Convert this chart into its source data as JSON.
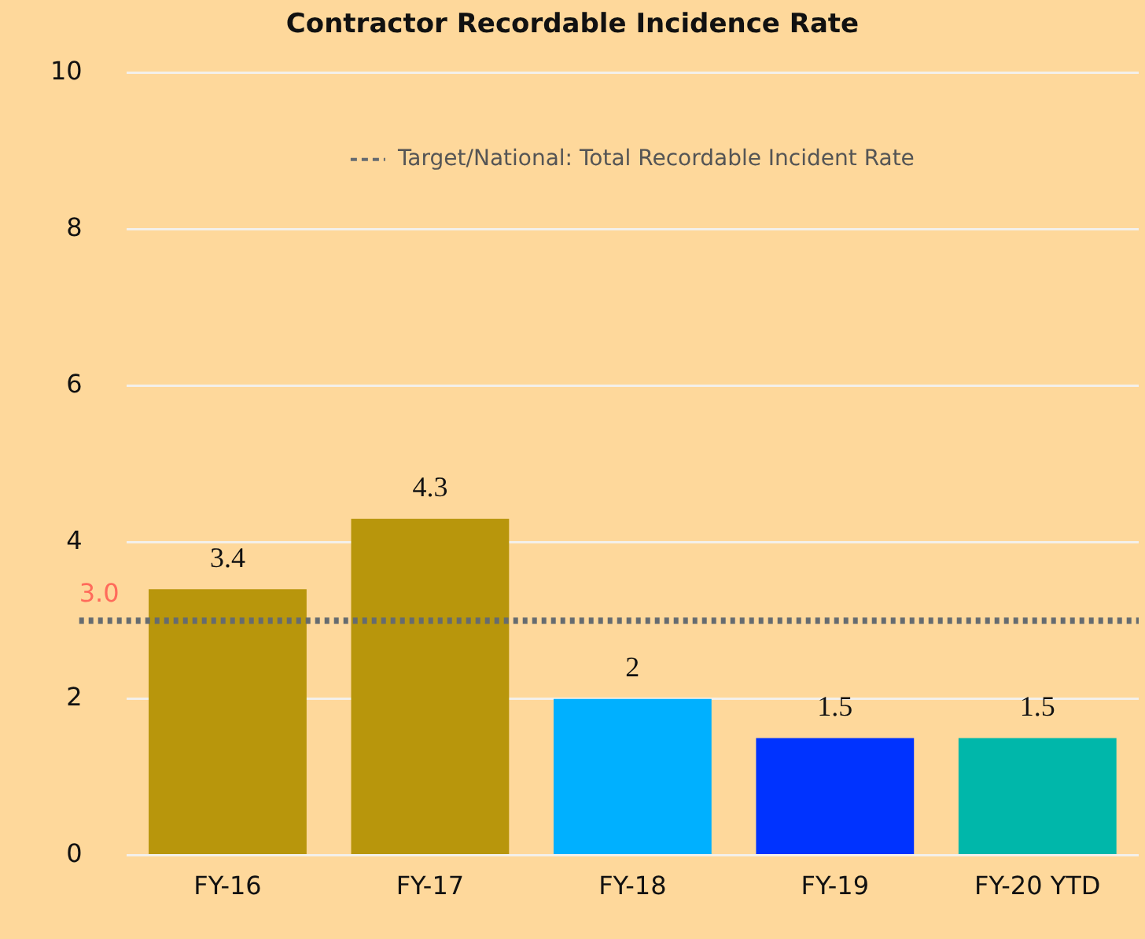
{
  "chart_data": {
    "type": "bar",
    "title": "Contractor Recordable Incidence Rate",
    "categories": [
      "FY-16",
      "FY-17",
      "FY-18",
      "FY-19",
      "FY-20 YTD"
    ],
    "values": [
      3.4,
      4.3,
      2,
      1.5,
      1.5
    ],
    "colors": [
      "#b8960c",
      "#b8960c",
      "#00b0ff",
      "#0033ff",
      "#00b7aa"
    ],
    "ylim": [
      0,
      10
    ],
    "yticks": [
      0,
      2,
      4,
      6,
      8,
      10
    ],
    "grid": "y",
    "data_labels": true,
    "legend": "top",
    "ref_lines": [
      {
        "axis": "y",
        "value": 3,
        "label": "Target/National: Total Recordable Incident Rate",
        "color": "#656b70",
        "line_style": "dotted"
      }
    ],
    "annotations": [
      {
        "text": "3.0",
        "y": 3
      }
    ]
  }
}
